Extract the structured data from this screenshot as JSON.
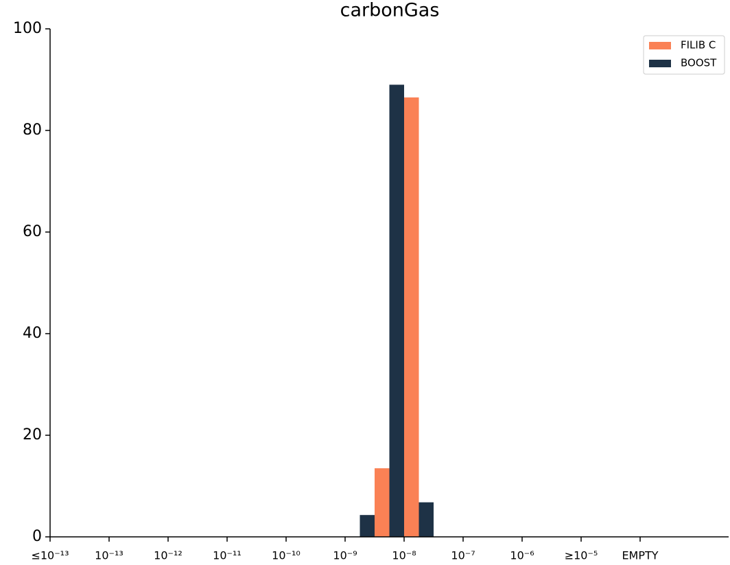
{
  "chart_data": {
    "type": "bar",
    "title": "carbonGas",
    "categories": [
      "≤10⁻¹³",
      null,
      "10⁻¹³",
      null,
      "10⁻¹²",
      null,
      "10⁻¹¹",
      null,
      "10⁻¹⁰",
      null,
      "10⁻⁹",
      null,
      "10⁻⁸",
      null,
      "10⁻⁷",
      null,
      "10⁻⁶",
      null,
      "≥10⁻⁵",
      null,
      "EMPTY"
    ],
    "series": [
      {
        "name": "FILIB C",
        "color": "#fa8155",
        "values": [
          0,
          0,
          0,
          0,
          0,
          0,
          0,
          0,
          0,
          0,
          0,
          13.5,
          86.5,
          0,
          0,
          0,
          0,
          0,
          0,
          0,
          0
        ]
      },
      {
        "name": "BOOST",
        "color": "#1e3246",
        "values": [
          0,
          0,
          0,
          0,
          0,
          0,
          0,
          0,
          0,
          0,
          0,
          4.3,
          89,
          6.8,
          0,
          0,
          0,
          0,
          0,
          0,
          0
        ]
      }
    ],
    "ylim": [
      0,
      100
    ],
    "yticks": [
      0,
      20,
      40,
      60,
      80,
      100
    ],
    "legend": "upper right"
  }
}
